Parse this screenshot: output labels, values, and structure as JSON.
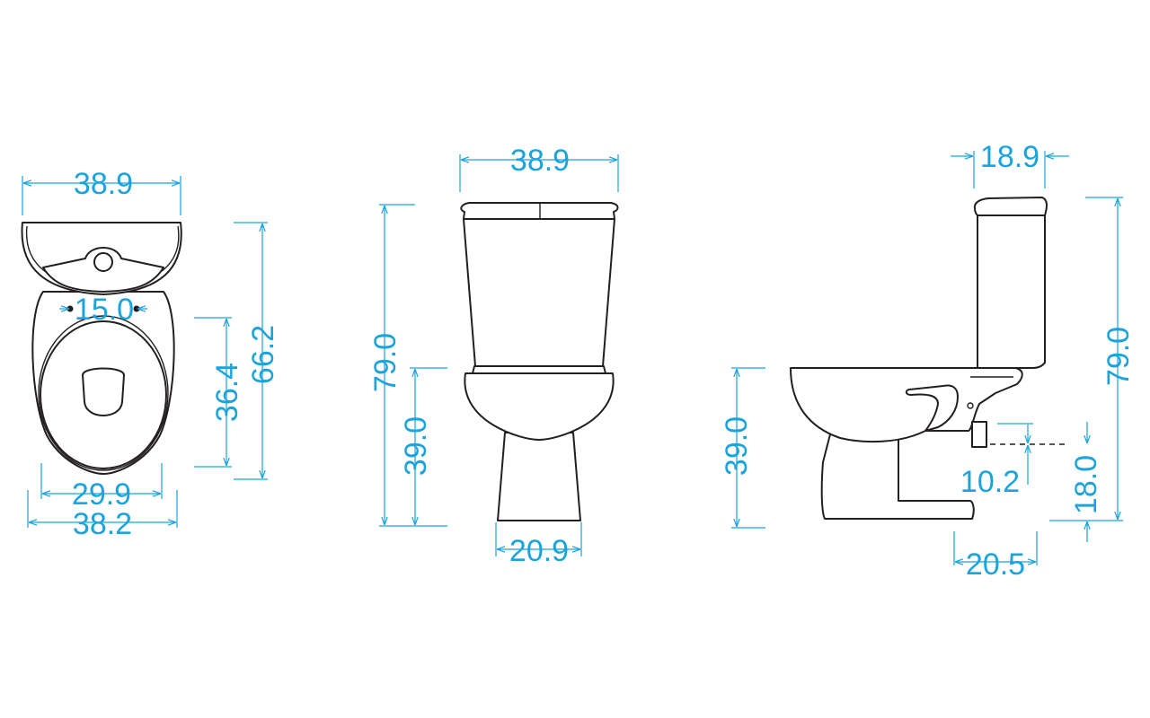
{
  "colors": {
    "dimension": "#1aa3dc",
    "outline": "#231f20",
    "background": "#ffffff"
  },
  "views": {
    "top": {
      "width": "38.9",
      "fixing_centres": "15.0",
      "depth_to_tank": "36.4",
      "overall_depth": "66.2",
      "seat_width": "29.9",
      "base_width": "38.2"
    },
    "front": {
      "width": "38.9",
      "overall_height": "79.0",
      "seat_height": "39.0",
      "pedestal_width": "20.9"
    },
    "side": {
      "tank_depth": "18.9",
      "overall_height": "79.0",
      "seat_height": "39.0",
      "outlet_offset": "10.2",
      "outlet_height": "18.0",
      "outlet_setback": "20.5"
    }
  }
}
